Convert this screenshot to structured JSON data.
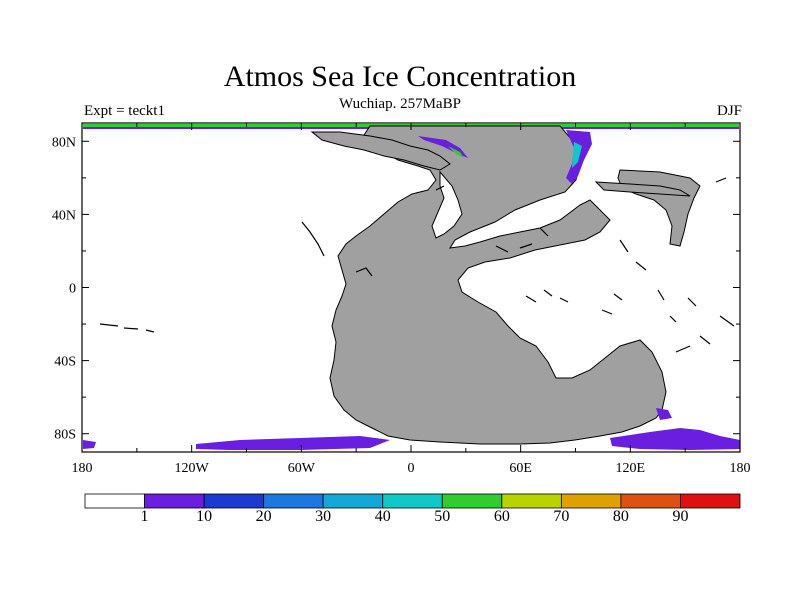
{
  "title": "Atmos Sea Ice Concentration",
  "subtitle": "Wuchiap. 257MaBP",
  "left_label": "Expt = teckt1",
  "right_label": "DJF",
  "map": {
    "projection": "cylindrical-equidistant",
    "lon_range": [
      -180,
      180
    ],
    "lat_range": [
      -90,
      90
    ],
    "land_color": "#a0a0a0",
    "ocean_color": "#ffffff",
    "x_ticks": [
      {
        "lon": -180,
        "label": "180"
      },
      {
        "lon": -120,
        "label": "120W"
      },
      {
        "lon": -60,
        "label": "60W"
      },
      {
        "lon": 0,
        "label": "0"
      },
      {
        "lon": 60,
        "label": "60E"
      },
      {
        "lon": 120,
        "label": "120E"
      },
      {
        "lon": 180,
        "label": "180"
      }
    ],
    "y_ticks": [
      {
        "lat": 80,
        "label": "80N"
      },
      {
        "lat": 40,
        "label": "40N"
      },
      {
        "lat": 0,
        "label": "0"
      },
      {
        "lat": -40,
        "label": "40S"
      },
      {
        "lat": -80,
        "label": "80S"
      }
    ]
  },
  "colorbar": {
    "colors": [
      "#ffffff",
      "#6a1ee0",
      "#1a3ad0",
      "#1a78e0",
      "#14a8d8",
      "#10c8c8",
      "#30cc30",
      "#b8d400",
      "#e0a000",
      "#e05010",
      "#e01010"
    ],
    "labels": [
      "1",
      "10",
      "20",
      "30",
      "40",
      "50",
      "60",
      "70",
      "80",
      "90"
    ]
  }
}
